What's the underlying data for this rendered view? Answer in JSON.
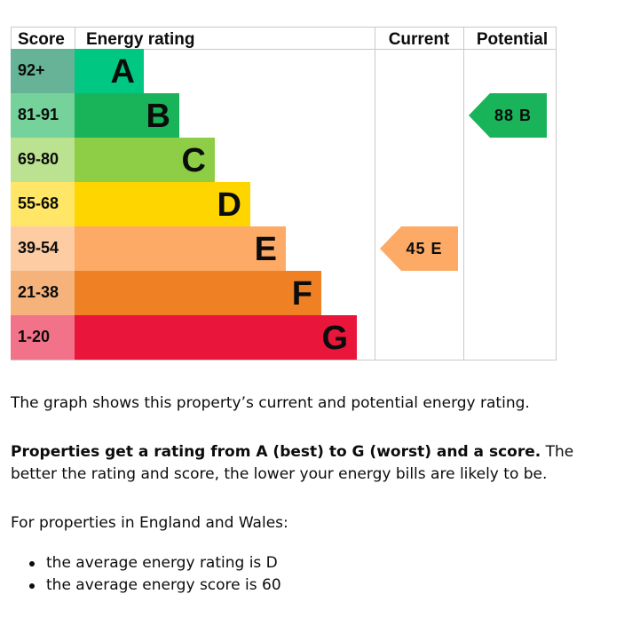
{
  "chart_data": {
    "type": "bar",
    "headers": {
      "score": "Score",
      "rating": "Energy rating",
      "current": "Current",
      "potential": "Potential"
    },
    "bands": [
      {
        "score": "92+",
        "letter": "A",
        "color": "#008054",
        "score_bg": "#66b398",
        "bar_color": "#00c781",
        "rank": 1
      },
      {
        "score": "81-91",
        "letter": "B",
        "color": "#19b459",
        "score_bg": "#75d29b",
        "bar_color": "#19b459",
        "rank": 2
      },
      {
        "score": "69-80",
        "letter": "C",
        "color": "#8dce46",
        "score_bg": "#bbe290",
        "bar_color": "#8dce46",
        "rank": 3
      },
      {
        "score": "55-68",
        "letter": "D",
        "color": "#ffd500",
        "score_bg": "#ffe666",
        "bar_color": "#ffd500",
        "rank": 4
      },
      {
        "score": "39-54",
        "letter": "E",
        "color": "#fcaa65",
        "score_bg": "#fdcca3",
        "bar_color": "#fcaa65",
        "rank": 5
      },
      {
        "score": "21-38",
        "letter": "F",
        "color": "#ef8023",
        "score_bg": "#f5b37b",
        "bar_color": "#ef8023",
        "rank": 6
      },
      {
        "score": "1-20",
        "letter": "G",
        "color": "#e9153b",
        "score_bg": "#f27389",
        "bar_color": "#e9153b",
        "rank": 7
      }
    ],
    "current": {
      "value": 45,
      "letter": "E",
      "label": "45 E",
      "color": "#fcaa65"
    },
    "potential": {
      "value": 88,
      "letter": "B",
      "label": "88 B",
      "color": "#19b459"
    }
  },
  "text": {
    "para1": "The graph shows this property’s current and potential energy rating.",
    "para2_bold": "Properties get a rating from A (best) to G (worst) and a score.",
    "para2_rest": " The better the rating and score, the lower your energy bills are likely to be.",
    "para3": "For properties in England and Wales:",
    "bullets": [
      "the average energy rating is D",
      "the average energy score is 60"
    ]
  }
}
